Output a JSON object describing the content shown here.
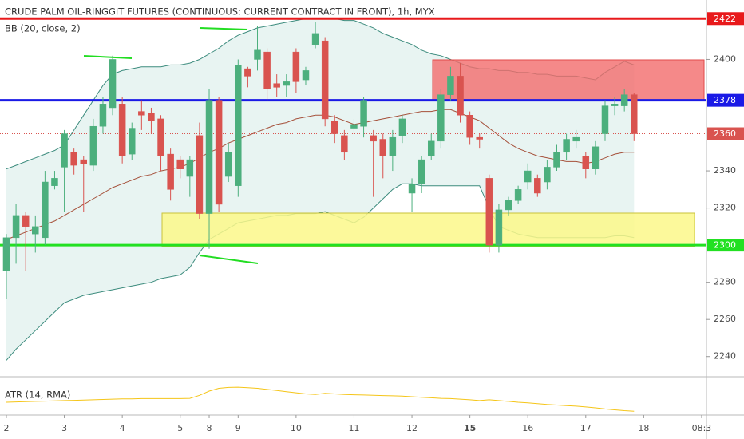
{
  "chart_data": {
    "type": "candlestick",
    "title": "CRUDE PALM OIL-RINGGIT FUTURES (CONTINUOUS: CURRENT CONTRACT IN FRONT), 1h, MYX",
    "subtitle": "BB (20, close, 2)",
    "indicator_label": "ATR (14, RMA)",
    "open": [
      2286,
      2304,
      2316,
      2306,
      2304,
      2332,
      2342,
      2350,
      2346,
      2343,
      2364,
      2374,
      2376,
      2349,
      2372,
      2371,
      2368,
      2349,
      2346,
      2337,
      2359,
      2317,
      2378,
      2337,
      2332,
      2395,
      2400,
      2404,
      2387,
      2386,
      2404,
      2389,
      2408,
      2410,
      2367,
      2359,
      2363,
      2364,
      2359,
      2357,
      2348,
      2359,
      2328,
      2333,
      2348,
      2356,
      2381,
      2391,
      2370,
      2358,
      2336,
      2300,
      2319,
      2324,
      2334,
      2336,
      2334,
      2342,
      2350,
      2356,
      2348,
      2341,
      2360,
      2375,
      2375,
      2381
    ],
    "high": [
      2306,
      2322,
      2318,
      2316,
      2340,
      2340,
      2362,
      2352,
      2348,
      2368,
      2380,
      2402,
      2380,
      2366,
      2378,
      2374,
      2370,
      2352,
      2348,
      2348,
      2366,
      2384,
      2380,
      2355,
      2400,
      2396,
      2418,
      2406,
      2392,
      2392,
      2406,
      2396,
      2420,
      2412,
      2370,
      2362,
      2368,
      2380,
      2362,
      2360,
      2362,
      2370,
      2336,
      2348,
      2360,
      2384,
      2396,
      2398,
      2372,
      2360,
      2338,
      2322,
      2326,
      2332,
      2344,
      2338,
      2346,
      2354,
      2360,
      2362,
      2350,
      2356,
      2378,
      2380,
      2384,
      2382
    ],
    "low": [
      2271,
      2290,
      2286,
      2296,
      2300,
      2330,
      2318,
      2338,
      2318,
      2340,
      2360,
      2370,
      2344,
      2346,
      2362,
      2360,
      2340,
      2324,
      2336,
      2326,
      2314,
      2298,
      2318,
      2334,
      2326,
      2385,
      2394,
      2378,
      2380,
      2380,
      2382,
      2386,
      2406,
      2364,
      2355,
      2346,
      2360,
      2358,
      2326,
      2336,
      2340,
      2355,
      2318,
      2328,
      2346,
      2352,
      2378,
      2366,
      2354,
      2352,
      2296,
      2296,
      2316,
      2322,
      2330,
      2326,
      2330,
      2340,
      2346,
      2352,
      2336,
      2338,
      2356,
      2370,
      2372,
      2356
    ],
    "close": [
      2304,
      2316,
      2310,
      2310,
      2334,
      2336,
      2360,
      2343,
      2344,
      2364,
      2376,
      2400,
      2348,
      2363,
      2370,
      2367,
      2348,
      2330,
      2341,
      2346,
      2317,
      2378,
      2322,
      2350,
      2397,
      2391,
      2405,
      2384,
      2385,
      2388,
      2388,
      2394,
      2414,
      2368,
      2360,
      2350,
      2365,
      2378,
      2356,
      2348,
      2358,
      2368,
      2333,
      2346,
      2356,
      2381,
      2391,
      2370,
      2358,
      2357,
      2300,
      2319,
      2324,
      2330,
      2340,
      2328,
      2342,
      2350,
      2357,
      2358,
      2341,
      2353,
      2375,
      2376,
      2381,
      2360
    ],
    "up_color": "#4caf7d",
    "down_color": "#d9534f",
    "bands": {
      "upper": [
        2341,
        2343,
        2345,
        2347,
        2349,
        2351,
        2354,
        2362,
        2370,
        2378,
        2386,
        2392,
        2394,
        2395,
        2396,
        2396,
        2396,
        2397,
        2397,
        2398,
        2400,
        2403,
        2406,
        2410,
        2413,
        2415,
        2417,
        2418,
        2419,
        2420,
        2421,
        2422,
        2422,
        2422,
        2422,
        2421,
        2421,
        2419,
        2417,
        2414,
        2412,
        2410,
        2408,
        2405,
        2403,
        2402,
        2400,
        2398,
        2396,
        2395,
        2395,
        2394,
        2394,
        2393,
        2393,
        2392,
        2392,
        2391,
        2391,
        2391,
        2390,
        2389,
        2393,
        2396,
        2399,
        2397
      ],
      "basis": [
        2303,
        2305,
        2307,
        2309,
        2311,
        2313,
        2316,
        2319,
        2322,
        2325,
        2328,
        2331,
        2333,
        2335,
        2337,
        2338,
        2340,
        2341,
        2342,
        2344,
        2347,
        2350,
        2352,
        2355,
        2357,
        2359,
        2361,
        2363,
        2365,
        2366,
        2368,
        2369,
        2370,
        2370,
        2369,
        2367,
        2365,
        2366,
        2367,
        2368,
        2369,
        2370,
        2371,
        2372,
        2372,
        2373,
        2373,
        2371,
        2369,
        2367,
        2363,
        2359,
        2355,
        2352,
        2350,
        2348,
        2347,
        2346,
        2345,
        2345,
        2344,
        2345,
        2347,
        2349,
        2350,
        2350
      ],
      "lower": [
        2238,
        2244,
        2249,
        2254,
        2259,
        2264,
        2269,
        2271,
        2273,
        2274,
        2275,
        2276,
        2277,
        2278,
        2279,
        2280,
        2282,
        2283,
        2284,
        2288,
        2296,
        2303,
        2306,
        2309,
        2312,
        2313,
        2314,
        2315,
        2316,
        2316,
        2317,
        2317,
        2317,
        2318,
        2316,
        2314,
        2312,
        2315,
        2320,
        2325,
        2330,
        2333,
        2333,
        2332,
        2332,
        2332,
        2332,
        2332,
        2332,
        2332,
        2320,
        2310,
        2308,
        2306,
        2305,
        2304,
        2304,
        2304,
        2304,
        2304,
        2304,
        2304,
        2304,
        2305,
        2305,
        2304
      ],
      "line_color": "#3d8c7e",
      "basis_color": "#a5503a",
      "fill": "#e6f3f1"
    },
    "atr": {
      "values": [
        8.0,
        8.1,
        8.2,
        8.3,
        8.4,
        8.5,
        8.6,
        8.7,
        8.8,
        8.9,
        9.0,
        9.1,
        9.2,
        9.2,
        9.3,
        9.3,
        9.3,
        9.3,
        9.3,
        9.4,
        10.5,
        12.0,
        13.0,
        13.3,
        13.4,
        13.2,
        13.0,
        12.6,
        12.2,
        11.8,
        11.4,
        11.0,
        10.8,
        11.2,
        11.0,
        10.8,
        10.7,
        10.6,
        10.5,
        10.4,
        10.3,
        10.2,
        10.0,
        9.8,
        9.6,
        9.4,
        9.3,
        9.1,
        8.9,
        8.6,
        8.9,
        8.6,
        8.3,
        8.0,
        7.8,
        7.5,
        7.2,
        7.0,
        6.8,
        6.6,
        6.3,
        6.0,
        5.6,
        5.3,
        5.0,
        4.8
      ],
      "color": "#f5c518",
      "ylim": [
        4,
        16
      ]
    },
    "ylim": [
      2230,
      2432
    ],
    "yticks": [
      2240,
      2260,
      2280,
      2320,
      2340,
      2400
    ],
    "xlim": [
      -0.66,
      72.5
    ],
    "xticks": [
      {
        "value": 0,
        "label": "2"
      },
      {
        "value": 6,
        "label": "3"
      },
      {
        "value": 12,
        "label": "4"
      },
      {
        "value": 18,
        "label": "5"
      },
      {
        "value": 21,
        "label": "8"
      },
      {
        "value": 24,
        "label": "9"
      },
      {
        "value": 30,
        "label": "10"
      },
      {
        "value": 36,
        "label": "11"
      },
      {
        "value": 42,
        "label": "12"
      },
      {
        "value": 48,
        "label": "15"
      },
      {
        "value": 54,
        "label": "16"
      },
      {
        "value": 60,
        "label": "17"
      },
      {
        "value": 66,
        "label": "18"
      },
      {
        "value": 72,
        "label": "08:3"
      }
    ],
    "levels": [
      {
        "value": 2422,
        "color": "#e8191b"
      },
      {
        "value": 2378,
        "color": "#1a1ae6"
      },
      {
        "value": 2300,
        "color": "#22e022"
      }
    ],
    "last_price": {
      "value": 2360,
      "color": "#d9534f"
    }
  }
}
